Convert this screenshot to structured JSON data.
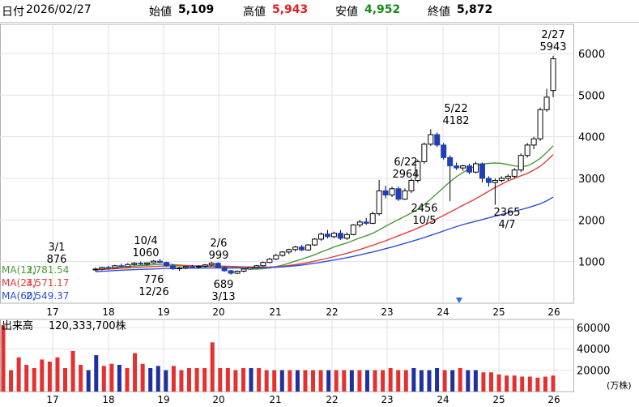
{
  "header": {
    "date_label": "日付",
    "date_value": "2026/02/27",
    "open_label": "始値",
    "open_value": "5,109",
    "high_label": "高値",
    "high_value": "5,943",
    "low_label": "安値",
    "low_value": "4,952",
    "close_label": "終値",
    "close_value": "5,872"
  },
  "colors": {
    "up_candle_fill": "#ffffff",
    "down_candle_fill": "#1f3fb8",
    "ma12": "#4a9a3a",
    "ma24": "#e23d3d",
    "ma60": "#2f4fd8",
    "volume_up": "#e53030",
    "volume_down": "#2030a0",
    "high_text": "#e02020",
    "low_text": "#1a8a1a",
    "marker": "#2a6fdb"
  },
  "chart_data": [
    {
      "type": "candlestick",
      "ylim": [
        0,
        6700
      ],
      "y_ticks": [
        "1000",
        "2000",
        "3000",
        "4000",
        "5000",
        "6000"
      ],
      "x_ticks": [
        "17",
        "18",
        "19",
        "20",
        "21",
        "22",
        "23",
        "24",
        "25",
        "26"
      ],
      "legend": [
        {
          "name": "MA(12)",
          "value": "3,781.54"
        },
        {
          "name": "MA(24)",
          "value": "3,571.17"
        },
        {
          "name": "MA(60)",
          "value": "2,549.37"
        }
      ],
      "annotations": [
        {
          "date": "3/1",
          "value": "876",
          "kind": "low"
        },
        {
          "date": "10/4",
          "value": "1060",
          "kind": "high"
        },
        {
          "date": "12/26",
          "value": "776",
          "kind": "low"
        },
        {
          "date": "2/6",
          "value": "999",
          "kind": "high"
        },
        {
          "date": "3/13",
          "value": "689",
          "kind": "low"
        },
        {
          "date": "6/22",
          "value": "2964",
          "kind": "high"
        },
        {
          "date": "10/5",
          "value": "2456",
          "kind": "low"
        },
        {
          "date": "5/22",
          "value": "4182",
          "kind": "high"
        },
        {
          "date": "4/7",
          "value": "2365",
          "kind": "low"
        },
        {
          "date": "2/27",
          "value": "5943",
          "kind": "high"
        }
      ],
      "ohlc": [
        [
          805,
          860,
          760,
          820
        ],
        [
          820,
          880,
          790,
          860
        ],
        [
          860,
          900,
          810,
          850
        ],
        [
          850,
          920,
          830,
          900
        ],
        [
          900,
          950,
          860,
          880
        ],
        [
          880,
          960,
          870,
          930
        ],
        [
          930,
          990,
          900,
          960
        ],
        [
          960,
          1000,
          920,
          940
        ],
        [
          940,
          980,
          900,
          970
        ],
        [
          970,
          1040,
          950,
          1010
        ],
        [
          1010,
          1060,
          960,
          980
        ],
        [
          980,
          1000,
          880,
          900
        ],
        [
          900,
          930,
          800,
          830
        ],
        [
          830,
          870,
          776,
          850
        ],
        [
          850,
          900,
          820,
          880
        ],
        [
          880,
          920,
          840,
          870
        ],
        [
          870,
          910,
          830,
          890
        ],
        [
          890,
          940,
          860,
          920
        ],
        [
          920,
          999,
          890,
          960
        ],
        [
          960,
          980,
          840,
          860
        ],
        [
          860,
          880,
          760,
          780
        ],
        [
          780,
          800,
          689,
          720
        ],
        [
          720,
          790,
          700,
          770
        ],
        [
          770,
          830,
          740,
          820
        ],
        [
          820,
          880,
          800,
          860
        ],
        [
          860,
          920,
          840,
          900
        ],
        [
          900,
          1000,
          880,
          980
        ],
        [
          980,
          1090,
          960,
          1060
        ],
        [
          1060,
          1180,
          1040,
          1150
        ],
        [
          1150,
          1250,
          1120,
          1230
        ],
        [
          1230,
          1310,
          1180,
          1290
        ],
        [
          1290,
          1380,
          1240,
          1350
        ],
        [
          1350,
          1400,
          1250,
          1280
        ],
        [
          1280,
          1420,
          1260,
          1400
        ],
        [
          1400,
          1560,
          1380,
          1540
        ],
        [
          1540,
          1700,
          1500,
          1660
        ],
        [
          1660,
          1760,
          1560,
          1600
        ],
        [
          1600,
          1720,
          1560,
          1680
        ],
        [
          1680,
          1760,
          1520,
          1560
        ],
        [
          1560,
          1700,
          1520,
          1650
        ],
        [
          1650,
          1900,
          1630,
          1880
        ],
        [
          1880,
          2000,
          1820,
          1950
        ],
        [
          1950,
          2050,
          1880,
          1920
        ],
        [
          1920,
          2200,
          1900,
          2150
        ],
        [
          2150,
          2964,
          2100,
          2700
        ],
        [
          2700,
          2820,
          2520,
          2600
        ],
        [
          2600,
          2800,
          2550,
          2750
        ],
        [
          2750,
          2800,
          2456,
          2500
        ],
        [
          2500,
          2760,
          2480,
          2700
        ],
        [
          2700,
          3000,
          2650,
          2950
        ],
        [
          2950,
          3450,
          2900,
          3400
        ],
        [
          3400,
          3860,
          3350,
          3820
        ],
        [
          3820,
          4182,
          3780,
          4050
        ],
        [
          4050,
          4100,
          3750,
          3800
        ],
        [
          3800,
          3850,
          3450,
          3500
        ],
        [
          3500,
          3550,
          2450,
          3300
        ],
        [
          3300,
          3380,
          3200,
          3250
        ],
        [
          3250,
          3330,
          3180,
          3300
        ],
        [
          3300,
          3350,
          3100,
          3150
        ],
        [
          3150,
          3400,
          3120,
          3350
        ],
        [
          3350,
          3380,
          2900,
          3000
        ],
        [
          3000,
          3050,
          2800,
          2900
        ],
        [
          2900,
          3000,
          2365,
          2950
        ],
        [
          2950,
          3050,
          2900,
          3000
        ],
        [
          3000,
          3100,
          2950,
          3050
        ],
        [
          3050,
          3250,
          3000,
          3200
        ],
        [
          3200,
          3600,
          3150,
          3550
        ],
        [
          3550,
          3850,
          3500,
          3800
        ],
        [
          3800,
          4000,
          3700,
          3950
        ],
        [
          3950,
          4700,
          3900,
          4650
        ],
        [
          4650,
          5150,
          4600,
          4950
        ],
        [
          5109,
          5943,
          4952,
          5872
        ]
      ],
      "ma12": [
        810,
        825,
        840,
        855,
        868,
        880,
        892,
        905,
        915,
        925,
        935,
        938,
        930,
        918,
        905,
        895,
        885,
        880,
        885,
        887,
        885,
        875,
        860,
        842,
        830,
        820,
        830,
        850,
        880,
        915,
        960,
        1010,
        1060,
        1110,
        1165,
        1230,
        1290,
        1350,
        1400,
        1450,
        1510,
        1570,
        1620,
        1680,
        1760,
        1850,
        1930,
        2010,
        2090,
        2170,
        2260,
        2370,
        2500,
        2640,
        2780,
        2920,
        3040,
        3140,
        3230,
        3300,
        3340,
        3360,
        3370,
        3360,
        3330,
        3300,
        3280,
        3300,
        3380,
        3480,
        3620,
        3781.54
      ],
      "ma24": [
        800,
        810,
        820,
        830,
        840,
        850,
        858,
        866,
        874,
        882,
        890,
        895,
        898,
        900,
        901,
        900,
        898,
        896,
        894,
        892,
        890,
        885,
        880,
        874,
        870,
        866,
        866,
        870,
        878,
        890,
        905,
        925,
        950,
        980,
        1010,
        1045,
        1080,
        1120,
        1160,
        1200,
        1245,
        1290,
        1340,
        1390,
        1445,
        1500,
        1560,
        1620,
        1680,
        1740,
        1805,
        1875,
        1950,
        2030,
        2110,
        2190,
        2270,
        2350,
        2430,
        2510,
        2600,
        2690,
        2780,
        2860,
        2940,
        3000,
        3060,
        3120,
        3200,
        3290,
        3420,
        3571.17
      ],
      "ma60": [
        760,
        768,
        776,
        784,
        792,
        800,
        806,
        812,
        818,
        824,
        830,
        835,
        838,
        840,
        842,
        843,
        844,
        845,
        846,
        847,
        848,
        848,
        847,
        846,
        846,
        847,
        850,
        855,
        862,
        872,
        885,
        900,
        918,
        938,
        960,
        985,
        1010,
        1038,
        1065,
        1095,
        1125,
        1160,
        1195,
        1230,
        1270,
        1310,
        1350,
        1395,
        1440,
        1485,
        1530,
        1580,
        1630,
        1680,
        1735,
        1790,
        1840,
        1890,
        1930,
        1970,
        2010,
        2050,
        2090,
        2130,
        2170,
        2210,
        2250,
        2290,
        2340,
        2390,
        2460,
        2549.37
      ]
    },
    {
      "type": "bar",
      "title": "出来高",
      "title_value": "120,333,700株",
      "unit": "(万株)",
      "ylim": [
        0,
        72000
      ],
      "y_ticks": [
        "20000",
        "40000",
        "60000"
      ],
      "x_ticks": [
        "17",
        "18",
        "19",
        "20",
        "21",
        "22",
        "23",
        "24",
        "25",
        "26"
      ],
      "values": [
        62000,
        20000,
        32000,
        25000,
        22000,
        30000,
        28000,
        32000,
        22000,
        38000,
        25000,
        20000,
        34000,
        24000,
        26000,
        25000,
        22000,
        36000,
        26000,
        22000,
        24000,
        20000,
        24000,
        20000,
        22000,
        22000,
        22000,
        46000,
        22000,
        22000,
        20000,
        22000,
        22000,
        22000,
        20000,
        20000,
        20000,
        20000,
        20000,
        20000,
        20000,
        20000,
        20000,
        20000,
        20000,
        20000,
        20000,
        20000,
        20000,
        20000,
        22000,
        20000,
        20000,
        22000,
        20000,
        20000,
        22000,
        20000,
        20000,
        22000,
        20000,
        20000,
        18000,
        18000,
        16000,
        15000,
        15000,
        14000,
        14000,
        13000,
        14000,
        15000
      ],
      "down": [
        0,
        0,
        0,
        0,
        0,
        0,
        0,
        0,
        0,
        0,
        0,
        1,
        1,
        0,
        0,
        1,
        0,
        0,
        0,
        1,
        1,
        1,
        0,
        0,
        0,
        0,
        0,
        0,
        0,
        0,
        0,
        0,
        1,
        0,
        0,
        0,
        1,
        0,
        1,
        0,
        0,
        0,
        1,
        0,
        0,
        1,
        0,
        1,
        0,
        0,
        0,
        0,
        0,
        1,
        1,
        1,
        1,
        0,
        1,
        0,
        1,
        1,
        0,
        0,
        0,
        0,
        0,
        0,
        0,
        0,
        0,
        0
      ]
    }
  ]
}
